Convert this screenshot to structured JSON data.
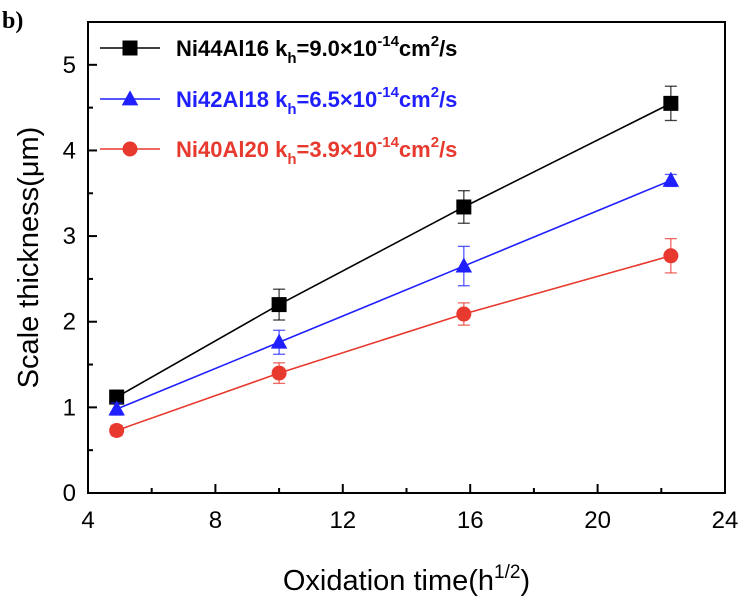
{
  "panel_label": "b)",
  "chart_data": {
    "type": "line",
    "xlabel": "Oxidation time(h",
    "xlabel_sup": "1/2",
    "xlabel_close": ")",
    "ylabel": "Scale thickness(μm)",
    "xlim": [
      4,
      24
    ],
    "ylim": [
      0,
      5.5
    ],
    "x_ticks": [
      4,
      8,
      12,
      16,
      20,
      24
    ],
    "y_ticks": [
      0,
      1,
      2,
      3,
      4,
      5
    ],
    "grid": false,
    "legend_position": "top-left",
    "series": [
      {
        "name": "Ni44Al16",
        "k_label": "k",
        "k_sub": "h",
        "k_value": "=9.0×10",
        "k_exp": "-14",
        "k_unit": "cm",
        "k_unit_exp": "2",
        "k_unit_tail": "/s",
        "color": "#000000",
        "marker": "square",
        "x": [
          4.9,
          10.0,
          15.8,
          22.3
        ],
        "y": [
          1.12,
          2.2,
          3.34,
          4.55
        ],
        "error": [
          0.08,
          0.18,
          0.19,
          0.2
        ]
      },
      {
        "name": "Ni42Al18",
        "k_label": "k",
        "k_sub": "h",
        "k_value": "=6.5×10",
        "k_exp": "-14",
        "k_unit": "cm",
        "k_unit_exp": "2",
        "k_unit_tail": "/s",
        "color": "#1f1fff",
        "marker": "triangle",
        "x": [
          4.9,
          10.0,
          15.8,
          22.3
        ],
        "y": [
          0.98,
          1.76,
          2.65,
          3.65
        ],
        "error": [
          0.07,
          0.14,
          0.23,
          0.07
        ]
      },
      {
        "name": "Ni40Al20",
        "k_label": "k",
        "k_sub": "h",
        "k_value": "=3.9×10",
        "k_exp": "-14",
        "k_unit": "cm",
        "k_unit_exp": "2",
        "k_unit_tail": "/s",
        "color": "#e8392f",
        "marker": "circle",
        "x": [
          4.9,
          10.0,
          15.8,
          22.3
        ],
        "y": [
          0.73,
          1.4,
          2.09,
          2.77
        ],
        "error": [
          0.06,
          0.12,
          0.13,
          0.2
        ]
      }
    ]
  }
}
